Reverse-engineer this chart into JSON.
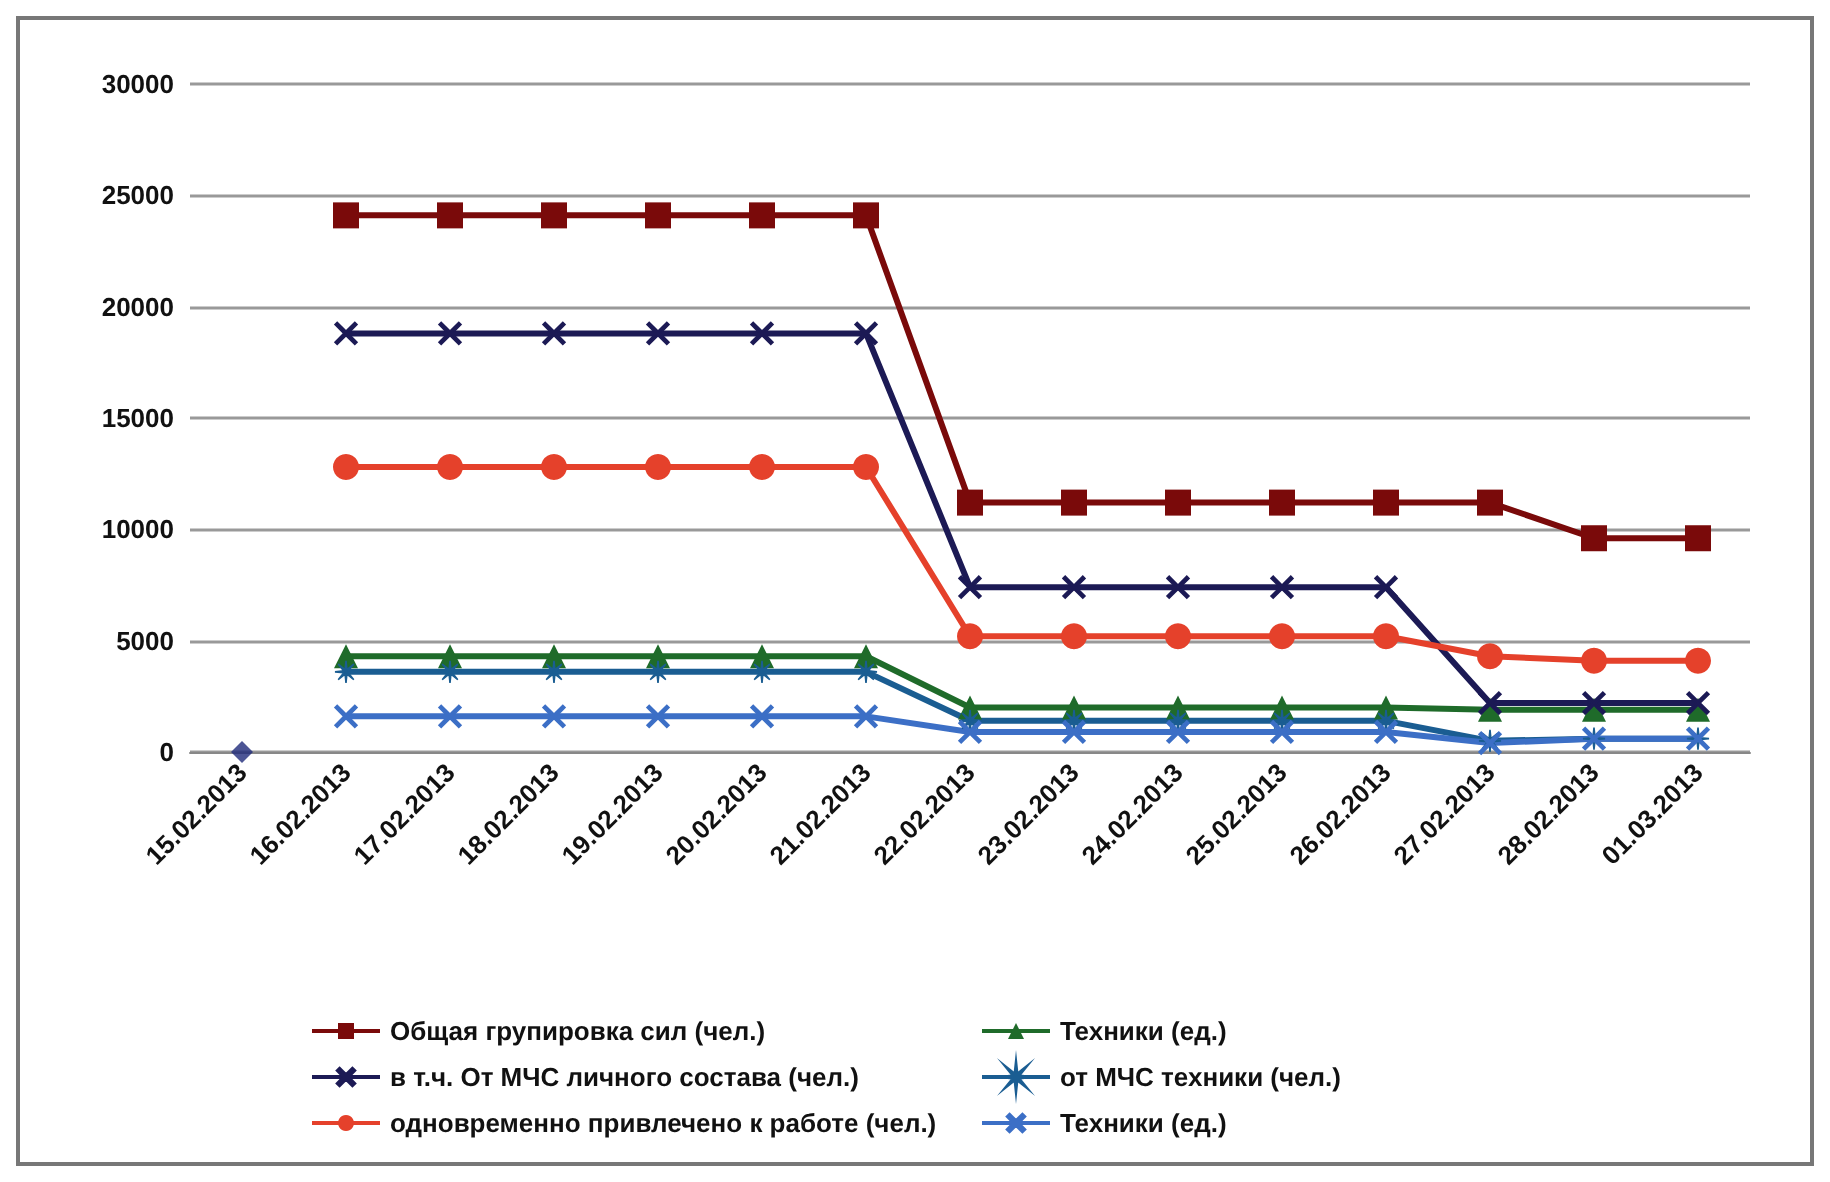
{
  "chart_data": {
    "type": "line",
    "categories": [
      "15.02.2013",
      "16.02.2013",
      "17.02.2013",
      "18.02.2013",
      "19.02.2013",
      "20.02.2013",
      "21.02.2013",
      "22.02.2013",
      "23.02.2013",
      "24.02.2013",
      "25.02.2013",
      "26.02.2013",
      "27.02.2013",
      "28.02.2013",
      "01.03.2013"
    ],
    "ylim": [
      0,
      30000
    ],
    "yticks": [
      0,
      5000,
      10000,
      15000,
      20000,
      25000,
      30000
    ],
    "grid": "y",
    "legend": "bottom",
    "line_style": "solid",
    "series": [
      {
        "name": "Общая групировка сил (чел.)",
        "color": "#7a0a0a",
        "marker": "square",
        "values": [
          null,
          24100,
          24100,
          24100,
          24100,
          24100,
          24100,
          11200,
          11200,
          11200,
          11200,
          11200,
          11200,
          9600,
          9600
        ]
      },
      {
        "name": "Техники (ед.)",
        "color": "#1f6b2a",
        "marker": "triangle",
        "values": [
          null,
          4300,
          4300,
          4300,
          4300,
          4300,
          4300,
          2000,
          2000,
          2000,
          2000,
          2000,
          1900,
          1900,
          1900
        ]
      },
      {
        "name": "в т.ч. От МЧС личного состава (чел.)",
        "color": "#1c1a55",
        "marker": "cross",
        "values": [
          null,
          18800,
          18800,
          18800,
          18800,
          18800,
          18800,
          7400,
          7400,
          7400,
          7400,
          7400,
          2200,
          2200,
          2200
        ]
      },
      {
        "name": "от МЧС техники (чел.)",
        "color": "#1a5d92",
        "marker": "star",
        "values": [
          null,
          3600,
          3600,
          3600,
          3600,
          3600,
          3600,
          1400,
          1400,
          1400,
          1400,
          1400,
          500,
          600,
          600
        ]
      },
      {
        "name": "одновременно привлечено к работе (чел.)",
        "color": "#e5412b",
        "marker": "circle",
        "values": [
          null,
          12800,
          12800,
          12800,
          12800,
          12800,
          12800,
          5200,
          5200,
          5200,
          5200,
          5200,
          4300,
          4100,
          4100
        ]
      },
      {
        "name": "Техники (ед.)",
        "color": "#3c6fc6",
        "marker": "cross",
        "values": [
          null,
          1600,
          1600,
          1600,
          1600,
          1600,
          1600,
          900,
          900,
          900,
          900,
          900,
          400,
          600,
          600
        ]
      },
      {
        "type": "scatter",
        "color": "#1f2a7a",
        "marker": "diamond",
        "values": [
          0,
          null,
          null,
          null,
          null,
          null,
          null,
          null,
          null,
          null,
          null,
          null,
          null,
          null,
          null
        ]
      }
    ]
  }
}
